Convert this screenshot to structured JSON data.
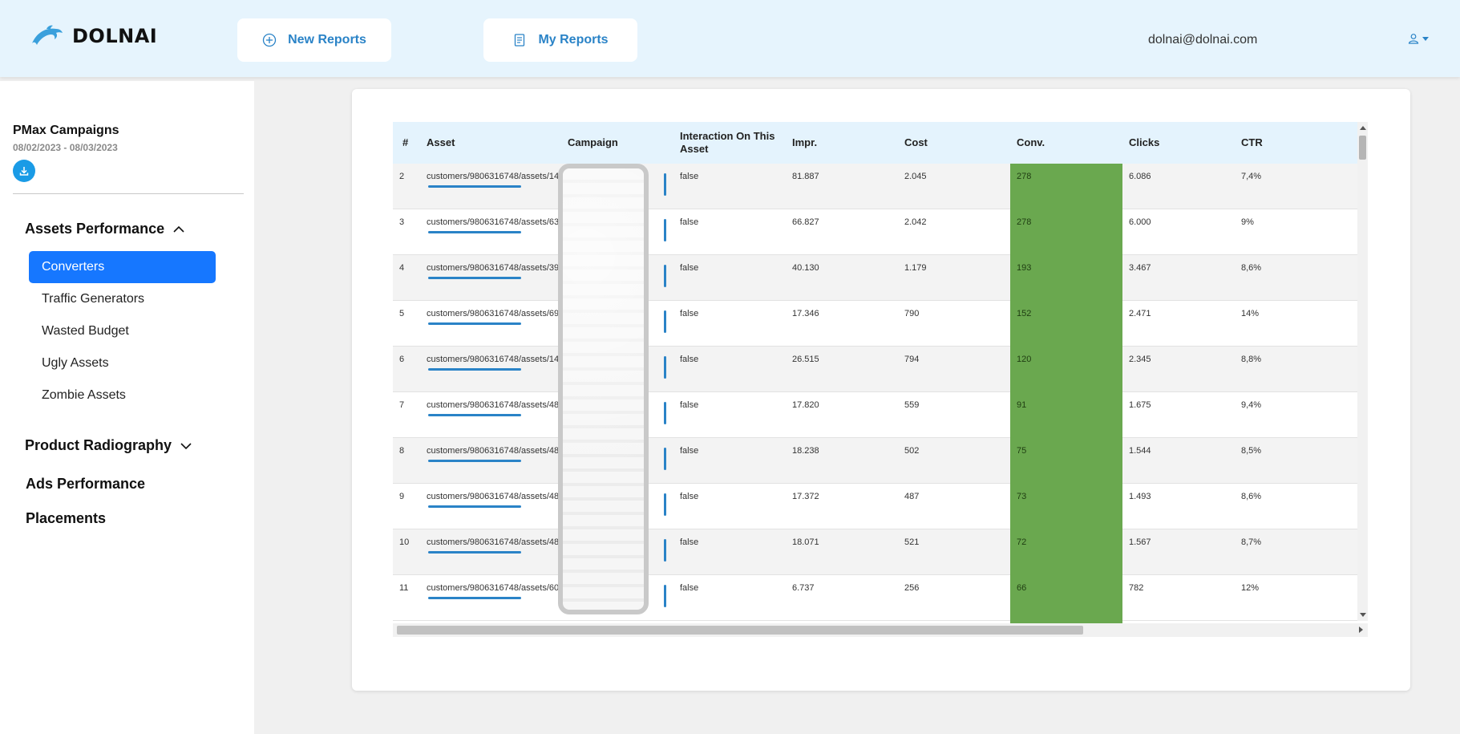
{
  "header": {
    "brand": "DOLNAI",
    "nav": {
      "new_reports": "New Reports",
      "my_reports": "My Reports"
    },
    "user_email": "dolnai@dolnai.com"
  },
  "sidebar": {
    "report_title": "PMax Campaigns",
    "date_range": "08/02/2023 - 08/03/2023",
    "sections": {
      "assets_performance": "Assets Performance",
      "product_radiography": "Product Radiography",
      "ads_performance": "Ads Performance",
      "placements": "Placements"
    },
    "items": [
      "Converters",
      "Traffic Generators",
      "Wasted Budget",
      "Ugly Assets",
      "Zombie Assets"
    ],
    "active_item": "Converters"
  },
  "table": {
    "columns": [
      "#",
      "Asset",
      "Campaign",
      "Interaction On This Asset",
      "Impr.",
      "Cost",
      "Conv.",
      "Clicks",
      "CTR"
    ],
    "rows": [
      {
        "n": "2",
        "asset": "customers/9806316748/assets/14",
        "interaction": "false",
        "impr": "81.887",
        "cost": "2.045",
        "conv": "278",
        "clicks": "6.086",
        "ctr": "7,4%"
      },
      {
        "n": "3",
        "asset": "customers/9806316748/assets/63",
        "interaction": "false",
        "impr": "66.827",
        "cost": "2.042",
        "conv": "278",
        "clicks": "6.000",
        "ctr": "9%"
      },
      {
        "n": "4",
        "asset": "customers/9806316748/assets/39",
        "interaction": "false",
        "impr": "40.130",
        "cost": "1.179",
        "conv": "193",
        "clicks": "3.467",
        "ctr": "8,6%"
      },
      {
        "n": "5",
        "asset": "customers/9806316748/assets/69",
        "interaction": "false",
        "impr": "17.346",
        "cost": "790",
        "conv": "152",
        "clicks": "2.471",
        "ctr": "14%"
      },
      {
        "n": "6",
        "asset": "customers/9806316748/assets/14",
        "interaction": "false",
        "impr": "26.515",
        "cost": "794",
        "conv": "120",
        "clicks": "2.345",
        "ctr": "8,8%"
      },
      {
        "n": "7",
        "asset": "customers/9806316748/assets/48",
        "interaction": "false",
        "impr": "17.820",
        "cost": "559",
        "conv": "91",
        "clicks": "1.675",
        "ctr": "9,4%"
      },
      {
        "n": "8",
        "asset": "customers/9806316748/assets/48",
        "interaction": "false",
        "impr": "18.238",
        "cost": "502",
        "conv": "75",
        "clicks": "1.544",
        "ctr": "8,5%"
      },
      {
        "n": "9",
        "asset": "customers/9806316748/assets/48",
        "interaction": "false",
        "impr": "17.372",
        "cost": "487",
        "conv": "73",
        "clicks": "1.493",
        "ctr": "8,6%"
      },
      {
        "n": "10",
        "asset": "customers/9806316748/assets/48",
        "interaction": "false",
        "impr": "18.071",
        "cost": "521",
        "conv": "72",
        "clicks": "1.567",
        "ctr": "8,7%"
      },
      {
        "n": "11",
        "asset": "customers/9806316748/assets/60",
        "interaction": "false",
        "impr": "6.737",
        "cost": "256",
        "conv": "66",
        "clicks": "782",
        "ctr": "12%"
      }
    ]
  },
  "colors": {
    "accent": "#1677ff",
    "link": "#2a83c7",
    "conv_highlight": "#6aa84f",
    "header_bg": "#e6f4fd"
  },
  "icons": {
    "brand": "dolphin-icon",
    "new_reports": "plus-circle-icon",
    "my_reports": "document-icon",
    "user": "user-icon",
    "download": "download-icon"
  }
}
